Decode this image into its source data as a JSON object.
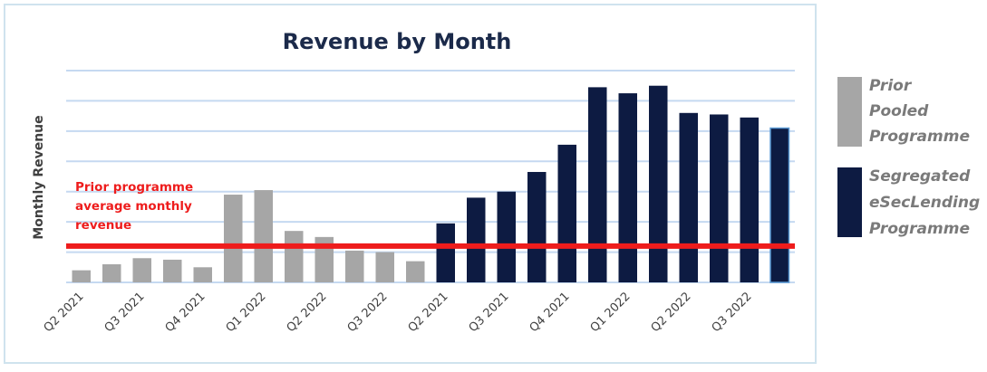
{
  "chart_data": {
    "type": "bar",
    "title": "Revenue by Month",
    "xlabel": "",
    "ylabel": "Monthly Revenue",
    "ylim": [
      0,
      7
    ],
    "grid": true,
    "legend_position": "right",
    "tick_labels": [
      "Q2 2021",
      "Q3 2021",
      "Q4 2021",
      "Q1 2022",
      "Q2 2022",
      "Q3 2022",
      "Q2 2021",
      "Q3 2021",
      "Q4 2021",
      "Q1 2022",
      "Q2 2022",
      "Q3 2022"
    ],
    "series": [
      {
        "name": "Prior Pooled Programme",
        "color": "#a6a6a6",
        "values": [
          0.4,
          0.6,
          0.8,
          0.75,
          0.5,
          2.9,
          3.05,
          1.7,
          1.5,
          1.05,
          1.0,
          0.7
        ]
      },
      {
        "name": "Segregated eSecLending Programme",
        "color": "#0d1b42",
        "values": [
          1.95,
          2.8,
          3.0,
          3.65,
          4.55,
          6.45,
          6.25,
          6.5,
          5.6,
          5.55,
          5.45,
          5.1
        ]
      }
    ],
    "reference_line": {
      "value": 1.2,
      "color": "#ee1c1c",
      "label_lines": [
        "Prior programme",
        "average monthly",
        "revenue"
      ]
    },
    "legend": {
      "prior": [
        "Prior",
        "Pooled",
        "Programme"
      ],
      "segregated": [
        "Segregated",
        "eSecLending",
        "Programme"
      ]
    }
  }
}
